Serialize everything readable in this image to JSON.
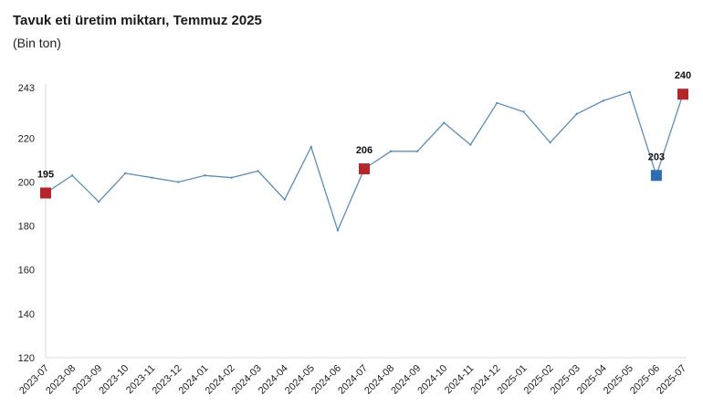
{
  "chart_data": {
    "type": "line",
    "title": "Tavuk eti üretim miktarı, Temmuz 2025",
    "subtitle": "(Bin ton)",
    "xlabel": "",
    "ylabel": "",
    "ylim": [
      120,
      245
    ],
    "yticks": [
      120,
      140,
      160,
      180,
      200,
      220,
      243
    ],
    "grid": false,
    "legend": "none",
    "categories": [
      "2023-07",
      "2023-08",
      "2023-09",
      "2023-10",
      "2023-11",
      "2023-12",
      "2024-01",
      "2024-02",
      "2024-03",
      "2024-04",
      "2024-05",
      "2024-06",
      "2024-07",
      "2024-08",
      "2024-09",
      "2024-10",
      "2024-11",
      "2024-12",
      "2025-01",
      "2025-02",
      "2025-03",
      "2025-04",
      "2025-05",
      "2025-06",
      "2025-07"
    ],
    "series": [
      {
        "values": [
          195,
          203,
          191,
          204,
          202,
          200,
          203,
          202,
          205,
          192,
          216,
          178,
          206,
          214,
          214,
          227,
          217,
          236,
          232,
          218,
          231,
          237,
          241,
          203,
          240
        ],
        "color": "#5b8db8"
      }
    ],
    "markers": [
      {
        "index": 0,
        "label": "195",
        "color": "#b5262b"
      },
      {
        "index": 12,
        "label": "206",
        "color": "#b5262b"
      },
      {
        "index": 23,
        "label": "203",
        "color": "#2e6db4"
      },
      {
        "index": 24,
        "label": "240",
        "color": "#b5262b"
      }
    ]
  }
}
